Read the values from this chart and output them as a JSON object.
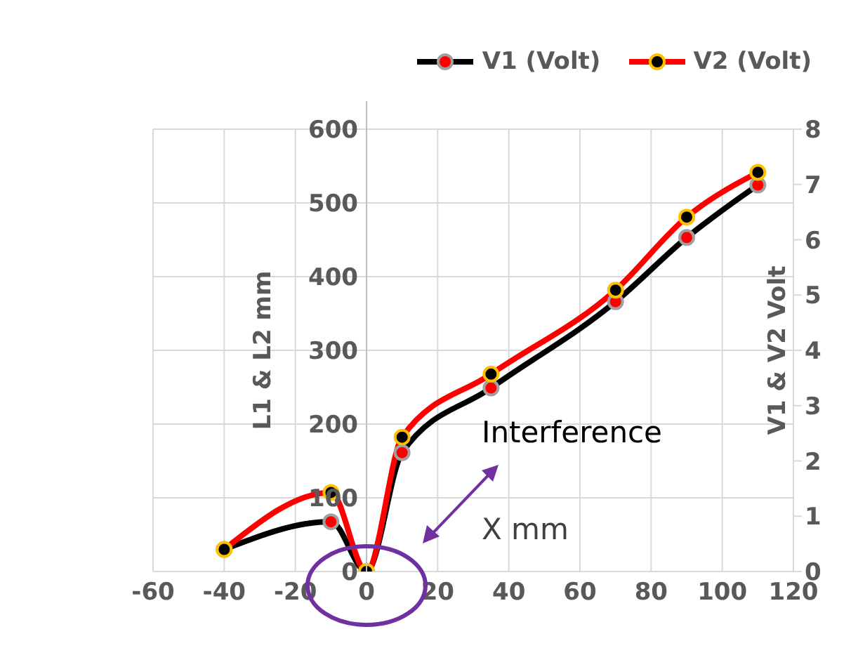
{
  "chart_data": {
    "type": "line",
    "title": null,
    "xlabel": "X mm",
    "ylabel": "L1 & L2 mm",
    "y2label": "V1 & V2 Volt",
    "annotations": [
      "Interference"
    ],
    "x": [
      -40,
      -10,
      0,
      10,
      35,
      70,
      90,
      110
    ],
    "series": [
      {
        "name": "V1 (Volt)",
        "color": "#000000",
        "axis": "y2",
        "values": [
          0.4,
          0.9,
          0,
          2.15,
          3.32,
          4.88,
          6.04,
          6.99
        ]
      },
      {
        "name": "V2 (Volt)",
        "color": "#ff0000",
        "axis": "y2",
        "values": [
          0.4,
          1.43,
          0,
          2.43,
          3.57,
          5.09,
          6.41,
          7.22
        ]
      }
    ],
    "xlim": [
      -60,
      120
    ],
    "xticks": [
      -60,
      -40,
      -20,
      0,
      20,
      40,
      60,
      80,
      100,
      120
    ],
    "ylim": [
      0,
      600
    ],
    "yticks": [
      0,
      100,
      200,
      300,
      400,
      500,
      600
    ],
    "y2lim": [
      0,
      8
    ],
    "y2ticks": [
      0,
      1,
      2,
      3,
      4,
      5,
      6,
      7,
      8
    ],
    "grid": true,
    "legend": "top right",
    "marker": "circle",
    "line_style": "solid"
  }
}
